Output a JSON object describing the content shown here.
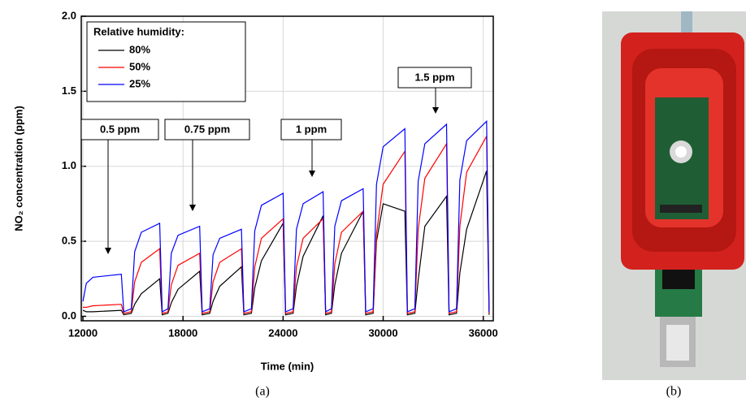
{
  "chart_data": {
    "type": "line",
    "x_label": "Time (min)",
    "y_label": "NO₂ concentration (ppm)",
    "xlim": [
      11900,
      36600
    ],
    "xticks": [
      12000,
      18000,
      24000,
      30000,
      36000
    ],
    "ylim": [
      -0.03,
      2.0
    ],
    "yticks": [
      {
        "value": 0,
        "label": "0.0"
      },
      0.5,
      {
        "value": 1,
        "label": "1.0"
      },
      1.5,
      {
        "value": 2,
        "label": "2.0"
      }
    ],
    "grid": true,
    "legend_title": "Relative humidity:",
    "legend_position": "upper left",
    "annotations": [
      "0.5 ppm",
      "0.75 ppm",
      "1 ppm",
      "1.5 ppm"
    ],
    "x": [
      12000,
      12200,
      12600,
      14300,
      14450,
      14900,
      15100,
      15500,
      16600,
      16750,
      17100,
      17300,
      17700,
      19000,
      19150,
      19600,
      19800,
      20200,
      21500,
      21650,
      22100,
      22300,
      22700,
      24000,
      24150,
      24600,
      24800,
      25200,
      26400,
      26550,
      26900,
      27100,
      27500,
      28800,
      28950,
      29400,
      29600,
      30000,
      31300,
      31450,
      31900,
      32100,
      32500,
      33800,
      33950,
      34400,
      34600,
      35000,
      36200,
      36350
    ],
    "series": [
      {
        "name": "80%",
        "color": "#000000",
        "values": [
          0.04,
          0.03,
          0.03,
          0.04,
          0.01,
          0.02,
          0.08,
          0.15,
          0.25,
          0.01,
          0.02,
          0.09,
          0.18,
          0.3,
          0.01,
          0.02,
          0.1,
          0.2,
          0.33,
          0.01,
          0.02,
          0.19,
          0.37,
          0.62,
          0.01,
          0.02,
          0.2,
          0.4,
          0.67,
          0.01,
          0.02,
          0.21,
          0.42,
          0.7,
          0.01,
          0.02,
          0.5,
          0.75,
          0.7,
          0.01,
          0.02,
          0.24,
          0.6,
          0.8,
          0.01,
          0.02,
          0.29,
          0.58,
          0.97,
          0.01
        ]
      },
      {
        "name": "50%",
        "color": "#ff0000",
        "values": [
          0.06,
          0.06,
          0.07,
          0.08,
          0.02,
          0.03,
          0.23,
          0.36,
          0.45,
          0.02,
          0.03,
          0.21,
          0.34,
          0.42,
          0.02,
          0.03,
          0.23,
          0.36,
          0.45,
          0.02,
          0.03,
          0.33,
          0.52,
          0.65,
          0.02,
          0.03,
          0.33,
          0.52,
          0.65,
          0.02,
          0.03,
          0.35,
          0.56,
          0.7,
          0.02,
          0.03,
          0.55,
          0.88,
          1.1,
          0.02,
          0.03,
          0.58,
          0.92,
          1.15,
          0.02,
          0.03,
          0.6,
          0.96,
          1.2,
          0.02
        ]
      },
      {
        "name": "25%",
        "color": "#0000ff",
        "values": [
          0.1,
          0.22,
          0.26,
          0.28,
          0.03,
          0.05,
          0.43,
          0.56,
          0.62,
          0.03,
          0.05,
          0.42,
          0.54,
          0.6,
          0.03,
          0.05,
          0.41,
          0.52,
          0.58,
          0.03,
          0.05,
          0.57,
          0.74,
          0.82,
          0.03,
          0.05,
          0.58,
          0.75,
          0.83,
          0.03,
          0.05,
          0.6,
          0.77,
          0.85,
          0.03,
          0.05,
          0.88,
          1.13,
          1.25,
          0.03,
          0.05,
          0.9,
          1.15,
          1.28,
          0.03,
          0.05,
          0.91,
          1.17,
          1.3,
          0.03
        ]
      }
    ]
  },
  "captions": [
    "(a)",
    "(b)"
  ]
}
